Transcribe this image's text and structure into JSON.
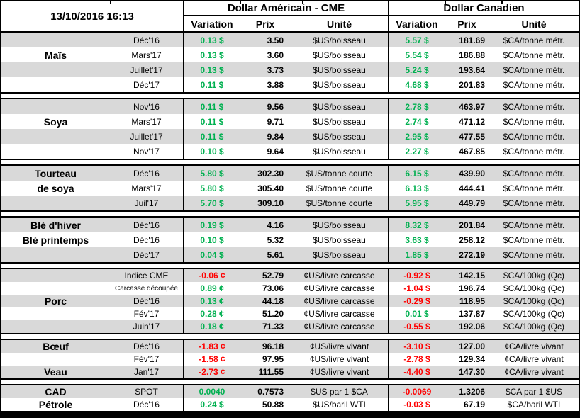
{
  "title_datetime": "13/10/2016 16:13",
  "groups": {
    "us": "Dollar Américain - CME",
    "ca": "Dollar Canadien"
  },
  "columns": {
    "variation": "Variation",
    "prix": "Prix",
    "unite": "Unité"
  },
  "colors": {
    "positive": "#00B050",
    "negative": "#FF0000",
    "stripe": "#D9D9D9"
  },
  "sections": [
    {
      "rows": [
        {
          "category": "",
          "month": "Déc'16",
          "us": {
            "var": "0.13 $",
            "dir": "up",
            "prix": "3.50",
            "unit": "$US/boisseau"
          },
          "ca": {
            "var": "5.57 $",
            "dir": "up",
            "prix": "181.69",
            "unit": "$CA/tonne métr."
          }
        },
        {
          "category": "Maïs",
          "month": "Mars'17",
          "us": {
            "var": "0.13 $",
            "dir": "up",
            "prix": "3.60",
            "unit": "$US/boisseau"
          },
          "ca": {
            "var": "5.54 $",
            "dir": "up",
            "prix": "186.88",
            "unit": "$CA/tonne métr."
          }
        },
        {
          "category": "",
          "month": "Juillet'17",
          "us": {
            "var": "0.13 $",
            "dir": "up",
            "prix": "3.73",
            "unit": "$US/boisseau"
          },
          "ca": {
            "var": "5.24 $",
            "dir": "up",
            "prix": "193.64",
            "unit": "$CA/tonne métr."
          }
        },
        {
          "category": "",
          "month": "Déc'17",
          "us": {
            "var": "0.11 $",
            "dir": "up",
            "prix": "3.88",
            "unit": "$US/boisseau"
          },
          "ca": {
            "var": "4.68 $",
            "dir": "up",
            "prix": "201.83",
            "unit": "$CA/tonne métr."
          }
        }
      ]
    },
    {
      "rows": [
        {
          "category": "",
          "month": "Nov'16",
          "us": {
            "var": "0.11 $",
            "dir": "up",
            "prix": "9.56",
            "unit": "$US/boisseau"
          },
          "ca": {
            "var": "2.78 $",
            "dir": "up",
            "prix": "463.97",
            "unit": "$CA/tonne métr."
          }
        },
        {
          "category": "Soya",
          "month": "Mars'17",
          "us": {
            "var": "0.11 $",
            "dir": "up",
            "prix": "9.71",
            "unit": "$US/boisseau"
          },
          "ca": {
            "var": "2.74 $",
            "dir": "up",
            "prix": "471.12",
            "unit": "$CA/tonne métr."
          }
        },
        {
          "category": "",
          "month": "Juillet'17",
          "us": {
            "var": "0.11 $",
            "dir": "up",
            "prix": "9.84",
            "unit": "$US/boisseau"
          },
          "ca": {
            "var": "2.95 $",
            "dir": "up",
            "prix": "477.55",
            "unit": "$CA/tonne métr."
          }
        },
        {
          "category": "",
          "month": "Nov'17",
          "us": {
            "var": "0.10 $",
            "dir": "up",
            "prix": "9.64",
            "unit": "$US/boisseau"
          },
          "ca": {
            "var": "2.27 $",
            "dir": "up",
            "prix": "467.85",
            "unit": "$CA/tonne métr."
          }
        }
      ]
    },
    {
      "rows": [
        {
          "category": "Tourteau",
          "month": "Déc'16",
          "us": {
            "var": "5.80 $",
            "dir": "up",
            "prix": "302.30",
            "unit": "$US/tonne courte"
          },
          "ca": {
            "var": "6.15 $",
            "dir": "up",
            "prix": "439.90",
            "unit": "$CA/tonne métr."
          }
        },
        {
          "category": "de soya",
          "month": "Mars'17",
          "us": {
            "var": "5.80 $",
            "dir": "up",
            "prix": "305.40",
            "unit": "$US/tonne courte"
          },
          "ca": {
            "var": "6.13 $",
            "dir": "up",
            "prix": "444.41",
            "unit": "$CA/tonne métr."
          }
        },
        {
          "category": "",
          "month": "Juil'17",
          "us": {
            "var": "5.70 $",
            "dir": "up",
            "prix": "309.10",
            "unit": "$US/tonne courte"
          },
          "ca": {
            "var": "5.95 $",
            "dir": "up",
            "prix": "449.79",
            "unit": "$CA/tonne métr."
          }
        }
      ]
    },
    {
      "rows": [
        {
          "category": "Blé d'hiver",
          "month": "Déc'16",
          "us": {
            "var": "0.19 $",
            "dir": "up",
            "prix": "4.16",
            "unit": "$US/boisseau"
          },
          "ca": {
            "var": "8.32 $",
            "dir": "up",
            "prix": "201.84",
            "unit": "$CA/tonne métr."
          }
        },
        {
          "category": "Blé printemps",
          "month": "Déc'16",
          "us": {
            "var": "0.10 $",
            "dir": "up",
            "prix": "5.32",
            "unit": "$US/boisseau"
          },
          "ca": {
            "var": "3.63 $",
            "dir": "up",
            "prix": "258.12",
            "unit": "$CA/tonne métr."
          }
        },
        {
          "category": "",
          "month": "Déc'17",
          "us": {
            "var": "0.04 $",
            "dir": "up",
            "prix": "5.61",
            "unit": "$US/boisseau"
          },
          "ca": {
            "var": "1.85 $",
            "dir": "up",
            "prix": "272.19",
            "unit": "$CA/tonne métr."
          }
        }
      ]
    },
    {
      "rows": [
        {
          "category": "",
          "month": "Indice CME",
          "us": {
            "var": "-0.06 ¢",
            "dir": "down",
            "prix": "52.79",
            "unit": "¢US/livre carcasse"
          },
          "ca": {
            "var": "-0.92 $",
            "dir": "down",
            "prix": "142.15",
            "unit": "$CA/100kg (Qc)"
          }
        },
        {
          "category": "",
          "month": "Carcasse découpée",
          "small_month": true,
          "us": {
            "var": "0.89 ¢",
            "dir": "up",
            "prix": "73.06",
            "unit": "¢US/livre carcasse"
          },
          "ca": {
            "var": "-1.04 $",
            "dir": "down",
            "prix": "196.74",
            "unit": "$CA/100kg (Qc)"
          }
        },
        {
          "category": "Porc",
          "month": "Déc'16",
          "us": {
            "var": "0.13 ¢",
            "dir": "up",
            "prix": "44.18",
            "unit": "¢US/livre carcasse"
          },
          "ca": {
            "var": "-0.29 $",
            "dir": "down",
            "prix": "118.95",
            "unit": "$CA/100kg (Qc)"
          }
        },
        {
          "category": "",
          "month": "Fév'17",
          "us": {
            "var": "0.28 ¢",
            "dir": "up",
            "prix": "51.20",
            "unit": "¢US/livre carcasse"
          },
          "ca": {
            "var": "0.01 $",
            "dir": "up",
            "prix": "137.87",
            "unit": "$CA/100kg (Qc)"
          }
        },
        {
          "category": "",
          "month": "Juin'17",
          "us": {
            "var": "0.18 ¢",
            "dir": "up",
            "prix": "71.33",
            "unit": "¢US/livre carcasse"
          },
          "ca": {
            "var": "-0.55 $",
            "dir": "down",
            "prix": "192.06",
            "unit": "$CA/100kg (Qc)"
          }
        }
      ]
    },
    {
      "rows": [
        {
          "category": "Bœuf",
          "month": "Déc'16",
          "us": {
            "var": "-1.83 ¢",
            "dir": "down",
            "prix": "96.18",
            "unit": "¢US/livre vivant"
          },
          "ca": {
            "var": "-3.10 $",
            "dir": "down",
            "prix": "127.00",
            "unit": "¢CA/livre vivant"
          }
        },
        {
          "category": "",
          "month": "Fév'17",
          "us": {
            "var": "-1.58 ¢",
            "dir": "down",
            "prix": "97.95",
            "unit": "¢US/livre vivant"
          },
          "ca": {
            "var": "-2.78 $",
            "dir": "down",
            "prix": "129.34",
            "unit": "¢CA/livre vivant"
          }
        },
        {
          "category": "Veau",
          "month": "Jan'17",
          "us": {
            "var": "-2.73 ¢",
            "dir": "down",
            "prix": "111.55",
            "unit": "¢US/livre vivant"
          },
          "ca": {
            "var": "-4.40 $",
            "dir": "down",
            "prix": "147.30",
            "unit": "¢CA/livre vivant"
          }
        }
      ]
    },
    {
      "rows": [
        {
          "category": "CAD",
          "month": "SPOT",
          "us": {
            "var": "0.0040",
            "dir": "up",
            "prix": "0.7573",
            "unit": "$US par 1 $CA"
          },
          "ca": {
            "var": "-0.0069",
            "dir": "down",
            "prix": "1.3206",
            "unit": "$CA par 1 $US"
          }
        },
        {
          "category": "Pétrole",
          "month": "Déc'16",
          "us": {
            "var": "0.24 $",
            "dir": "up",
            "prix": "50.88",
            "unit": "$US/baril WTI"
          },
          "ca": {
            "var": "-0.03 $",
            "dir": "down",
            "prix": "67.19",
            "unit": "$CA/baril WTI"
          }
        }
      ]
    }
  ]
}
